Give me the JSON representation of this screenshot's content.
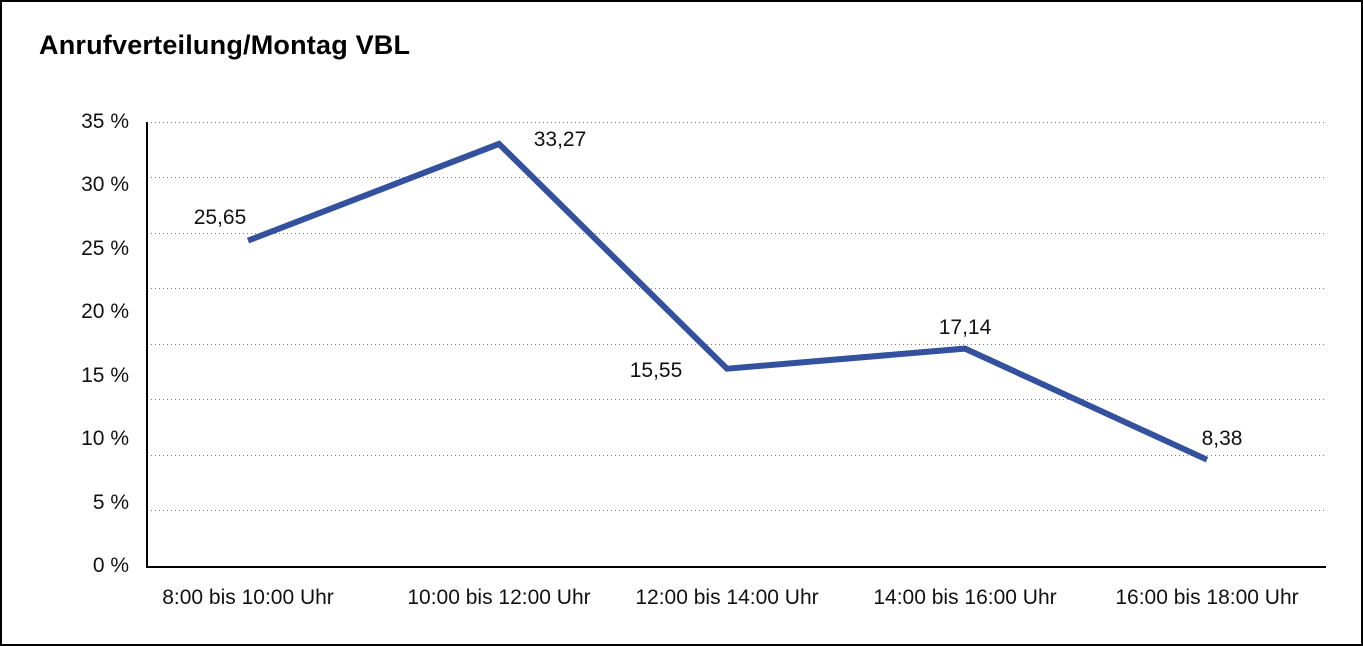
{
  "window": {
    "background_color": "#ffffff",
    "border_color": "#000000"
  },
  "header": {
    "title": "Anrufverteilung/Montag VBL"
  },
  "chart_data": {
    "type": "line",
    "title": "Anrufverteilung/Montag VBL",
    "categories": [
      "8:00 bis 10:00 Uhr",
      "10:00 bis 12:00 Uhr",
      "12:00 bis 14:00 Uhr",
      "14:00 bis 16:00 Uhr",
      "16:00 bis 18:00 Uhr"
    ],
    "values": [
      25.65,
      33.27,
      15.55,
      17.14,
      8.38
    ],
    "point_labels": [
      "25,65",
      "33,27",
      "15,55",
      "17,14",
      "8,38"
    ],
    "xlabel": "",
    "ylabel": "",
    "ylim": [
      0,
      35
    ],
    "ytick_labels": [
      "35 %",
      "30 %",
      "25 %",
      "20 %",
      "15 %",
      "10 %",
      "5 %",
      "0 %"
    ],
    "gridline_count": 9,
    "grid_style": "dotted horizontal",
    "legend": "none",
    "line_color": "#33519E",
    "line_width": 6,
    "grid_color": "#7a7a7a",
    "axis_color": "#000000",
    "text_color": "#111111"
  }
}
